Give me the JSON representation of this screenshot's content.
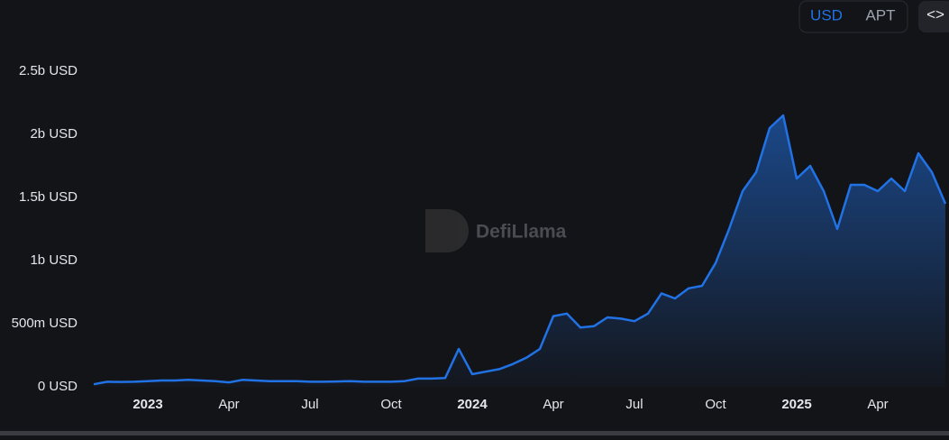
{
  "controls": {
    "currency_options": [
      "USD",
      "APT"
    ],
    "embed_button": "<>"
  },
  "watermark": "DefiLlama",
  "chart_data": {
    "type": "area",
    "categories": [
      null,
      null,
      null,
      null,
      "2023",
      null,
      null,
      null,
      null,
      null,
      "Apr",
      null,
      null,
      null,
      null,
      null,
      "Jul",
      null,
      null,
      null,
      null,
      null,
      "Oct",
      null,
      null,
      null,
      null,
      null,
      "2024",
      null,
      null,
      null,
      null,
      null,
      "Apr",
      null,
      null,
      null,
      null,
      null,
      "Jul",
      null,
      null,
      null,
      null,
      null,
      "Oct",
      null,
      null,
      null,
      null,
      null,
      "2025",
      null,
      null,
      null,
      null,
      null,
      "Apr",
      null,
      null,
      null,
      null,
      null
    ],
    "values": [
      20000000,
      40000000,
      38000000,
      40000000,
      45000000,
      50000000,
      50000000,
      55000000,
      50000000,
      45000000,
      35000000,
      55000000,
      50000000,
      45000000,
      45000000,
      45000000,
      40000000,
      40000000,
      42000000,
      45000000,
      40000000,
      40000000,
      40000000,
      45000000,
      65000000,
      65000000,
      70000000,
      300000000,
      100000000,
      120000000,
      140000000,
      180000000,
      230000000,
      300000000,
      560000000,
      580000000,
      470000000,
      480000000,
      550000000,
      540000000,
      520000000,
      580000000,
      740000000,
      700000000,
      780000000,
      800000000,
      980000000,
      1250000000,
      1550000000,
      1700000000,
      2050000000,
      2150000000,
      1650000000,
      1750000000,
      1550000000,
      1250000000,
      1600000000,
      1600000000,
      1550000000,
      1650000000,
      1550000000,
      1850000000,
      1700000000,
      1450000000
    ],
    "color": "#2172e5",
    "ylim": [
      0,
      3000000000
    ],
    "yticks": [
      {
        "value": 0,
        "label": "0 USD"
      },
      {
        "value": 500000000,
        "label": "500m USD"
      },
      {
        "value": 1000000000,
        "label": "1b USD"
      },
      {
        "value": 1500000000,
        "label": "1.5b USD"
      },
      {
        "value": 2000000000,
        "label": "2b USD"
      },
      {
        "value": 2500000000,
        "label": "2.5b USD"
      }
    ]
  }
}
